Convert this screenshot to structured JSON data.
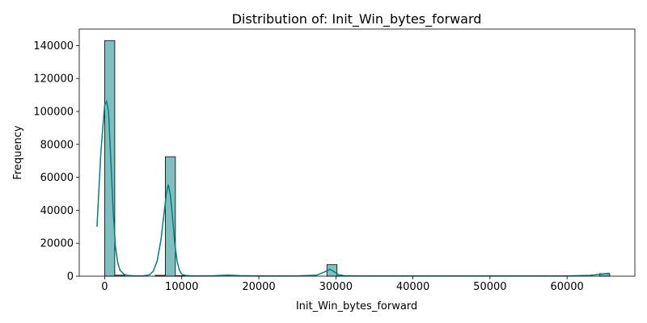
{
  "chart_data": {
    "type": "bar",
    "title": "Distribution of: Init_Win_bytes_forward",
    "xlabel": "Init_Win_bytes_forward",
    "ylabel": "Frequency",
    "xlim": [
      -3300,
      68800
    ],
    "ylim": [
      0,
      150000
    ],
    "xticks": [
      0,
      10000,
      20000,
      30000,
      40000,
      50000,
      60000
    ],
    "yticks": [
      0,
      20000,
      40000,
      60000,
      80000,
      100000,
      120000,
      140000
    ],
    "color": "#008080",
    "bins": [
      {
        "x0": -1,
        "x1": 1310,
        "count": 143000
      },
      {
        "x0": 1310,
        "x1": 2621,
        "count": 600
      },
      {
        "x0": 6553,
        "x1": 7864,
        "count": 500
      },
      {
        "x0": 7864,
        "x1": 9175,
        "count": 72500
      },
      {
        "x0": 9175,
        "x1": 10486,
        "count": 300
      },
      {
        "x0": 28837,
        "x1": 30148,
        "count": 7000
      },
      {
        "x0": 30148,
        "x1": 31459,
        "count": 150
      },
      {
        "x0": 64210,
        "x1": 65535,
        "count": 1500
      }
    ],
    "kde": [
      [
        -1000,
        30000
      ],
      [
        -500,
        75000
      ],
      [
        0,
        104000
      ],
      [
        250,
        106000
      ],
      [
        500,
        100000
      ],
      [
        800,
        70000
      ],
      [
        1100,
        40000
      ],
      [
        1400,
        18000
      ],
      [
        1700,
        8000
      ],
      [
        2000,
        3500
      ],
      [
        2500,
        1200
      ],
      [
        3000,
        400
      ],
      [
        4000,
        150
      ],
      [
        5000,
        200
      ],
      [
        5800,
        800
      ],
      [
        6300,
        3000
      ],
      [
        6800,
        9000
      ],
      [
        7300,
        22000
      ],
      [
        7700,
        38000
      ],
      [
        8000,
        50000
      ],
      [
        8250,
        55500
      ],
      [
        8500,
        50000
      ],
      [
        8800,
        36000
      ],
      [
        9100,
        20000
      ],
      [
        9400,
        9000
      ],
      [
        9700,
        3500
      ],
      [
        10000,
        1200
      ],
      [
        10500,
        400
      ],
      [
        11500,
        100
      ],
      [
        14000,
        200
      ],
      [
        16000,
        700
      ],
      [
        17500,
        300
      ],
      [
        20000,
        100
      ],
      [
        25000,
        100
      ],
      [
        27500,
        600
      ],
      [
        28500,
        2500
      ],
      [
        29200,
        4200
      ],
      [
        29700,
        3000
      ],
      [
        30300,
        1000
      ],
      [
        31000,
        300
      ],
      [
        33000,
        100
      ],
      [
        40000,
        100
      ],
      [
        50000,
        100
      ],
      [
        60000,
        150
      ],
      [
        63000,
        500
      ],
      [
        64500,
        1200
      ],
      [
        65000,
        1600
      ],
      [
        65500,
        1800
      ]
    ]
  }
}
